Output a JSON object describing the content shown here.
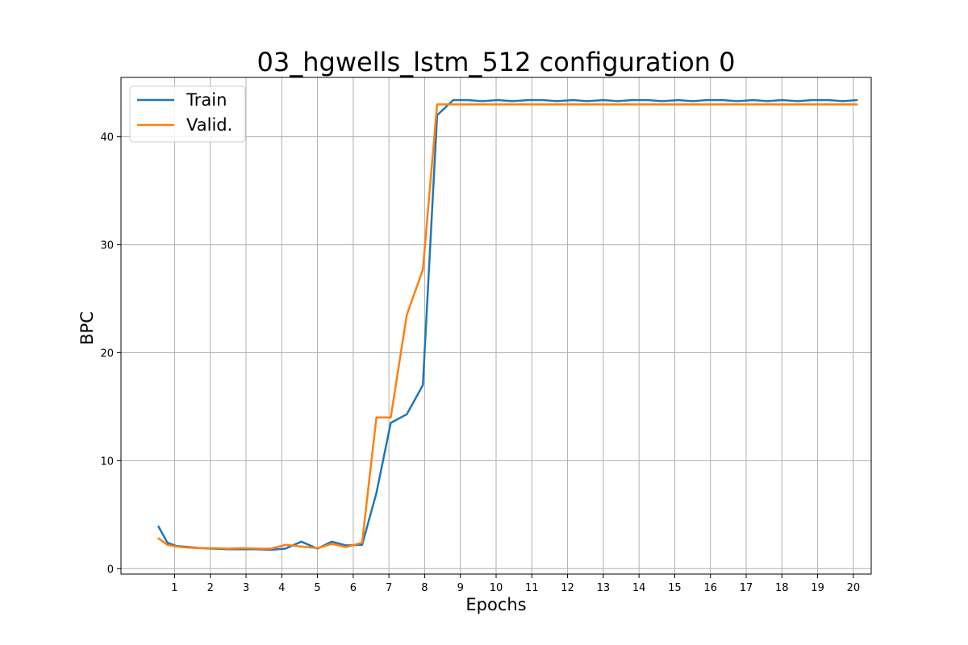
{
  "chart_data": {
    "type": "line",
    "title": "03_hgwells_lstm_512 configuration 0",
    "xlabel": "Epochs",
    "ylabel": "BPC",
    "xlim": [
      -0.5,
      20.5
    ],
    "ylim": [
      -0.5,
      45.5
    ],
    "xticks": [
      1,
      2,
      3,
      4,
      5,
      6,
      7,
      8,
      9,
      10,
      11,
      12,
      13,
      14,
      15,
      16,
      17,
      18,
      19,
      20
    ],
    "yticks": [
      0,
      10,
      20,
      30,
      40
    ],
    "grid": true,
    "legend_position": "top-left",
    "series": [
      {
        "name": "Train",
        "color": "#1f77b4",
        "x": [
          0.55,
          0.8,
          1.05,
          1.4,
          1.75,
          2.1,
          2.5,
          2.9,
          3.3,
          3.7,
          4.1,
          4.55,
          5.0,
          5.4,
          5.8,
          6.25,
          6.65,
          7.05,
          7.5,
          7.95,
          8.35,
          8.8,
          9.2,
          9.6,
          10.05,
          10.45,
          10.9,
          11.3,
          11.7,
          12.15,
          12.55,
          13.0,
          13.4,
          13.8,
          14.25,
          14.65,
          15.1,
          15.5,
          15.9,
          16.35,
          16.75,
          17.2,
          17.6,
          18.0,
          18.45,
          18.85,
          19.3,
          19.7,
          20.1
        ],
        "values": [
          3.9,
          2.4,
          2.1,
          2.0,
          1.9,
          1.85,
          1.8,
          1.8,
          1.8,
          1.75,
          1.85,
          2.5,
          1.85,
          2.5,
          2.15,
          2.2,
          7.0,
          13.5,
          14.3,
          17.0,
          42.0,
          43.4,
          43.4,
          43.3,
          43.4,
          43.3,
          43.4,
          43.4,
          43.3,
          43.4,
          43.3,
          43.4,
          43.3,
          43.4,
          43.4,
          43.3,
          43.4,
          43.3,
          43.4,
          43.4,
          43.3,
          43.4,
          43.3,
          43.4,
          43.3,
          43.4,
          43.4,
          43.3,
          43.4
        ]
      },
      {
        "name": "Valid.",
        "color": "#ff7f0e",
        "x": [
          0.55,
          0.8,
          1.05,
          1.4,
          1.75,
          2.1,
          2.5,
          2.9,
          3.3,
          3.7,
          4.1,
          4.55,
          5.0,
          5.4,
          5.8,
          6.25,
          6.65,
          7.05,
          7.5,
          7.95,
          8.35,
          8.8,
          9.2,
          20.1
        ],
        "values": [
          2.8,
          2.2,
          2.05,
          1.95,
          1.9,
          1.9,
          1.85,
          1.9,
          1.85,
          1.85,
          2.2,
          2.05,
          1.9,
          2.3,
          2.0,
          2.4,
          14.0,
          14.0,
          23.5,
          27.7,
          43.0,
          43.0,
          43.0,
          43.0
        ]
      }
    ]
  }
}
